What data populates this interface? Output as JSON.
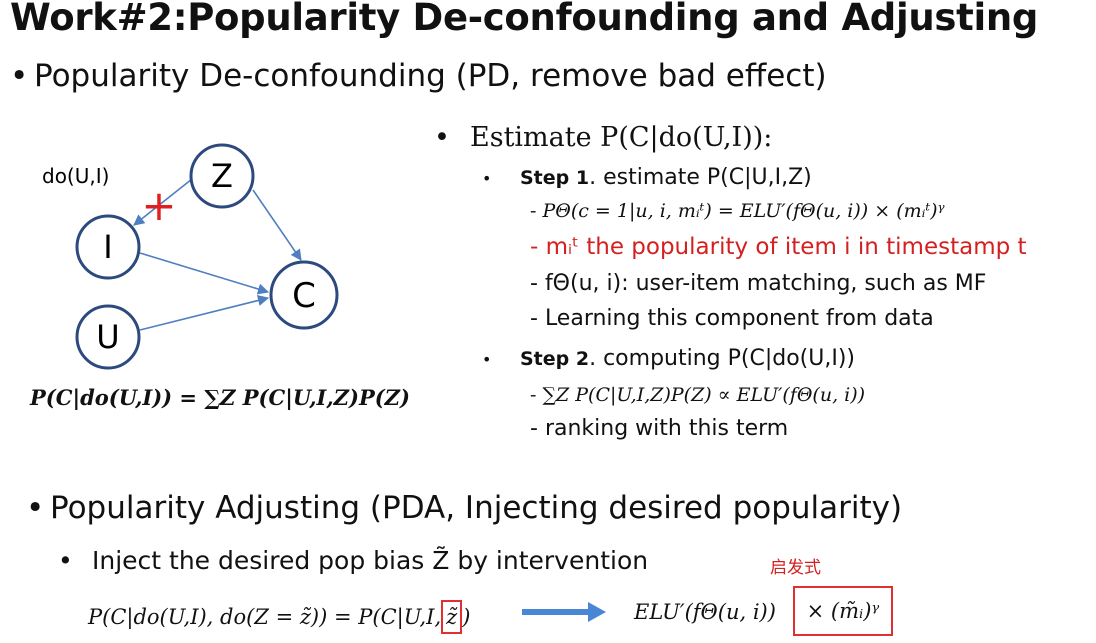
{
  "title": "Work#2:Popularity De-confounding and Adjusting",
  "pd_bullet": "Popularity De-confounding (PD, remove bad effect)",
  "diagram": {
    "do_label": "do(U,I)",
    "nodes": {
      "z": "Z",
      "i": "I",
      "u": "U",
      "c": "C"
    },
    "cut_mark": "+",
    "colors": {
      "edge": "#4f7fc0",
      "node_border": "#2c4a7e",
      "cut": "#e02020"
    }
  },
  "pd_formula": "P(C|do(U,I)) = ∑Z P(C|U,I,Z)P(Z)",
  "estimate": {
    "heading": "Estimate P(C|do(U,I)):",
    "step1": {
      "label": "Step 1",
      "text": ". estimate P(C|U,I,Z)",
      "items": [
        "PΘ(c = 1|u, i, mᵢᵗ) = ELU′(fΘ(u, i)) × (mᵢᵗ)ᵞ",
        "mᵢᵗ the popularity of item i in timestamp t",
        "fΘ(u, i): user-item matching, such as MF",
        "Learning this component from data"
      ]
    },
    "step2": {
      "label": "Step 2",
      "text": ". computing P(C|do(U,I))",
      "items": [
        "∑Z P(C|U,I,Z)P(Z) ∝ ELU′(fΘ(u, i))",
        "ranking with this term"
      ]
    }
  },
  "pda_bullet": "Popularity Adjusting (PDA, Injecting desired popularity)",
  "inject_bullet": "Inject the desired pop bias Z̃ by intervention",
  "heuristic_label": "启发式",
  "bottom_equation": {
    "lhs": "P(C|do(U,I), do(Z = z̃)) = P(C|U,I,",
    "boxed_z": "z̃",
    "rhs_close": ")",
    "arrow_color": "#4a86d6",
    "result": "ELU′(fΘ(u, i))",
    "boxed_term": "× (m̃ᵢ)ᵞ"
  },
  "highlight_color": "#e03030"
}
